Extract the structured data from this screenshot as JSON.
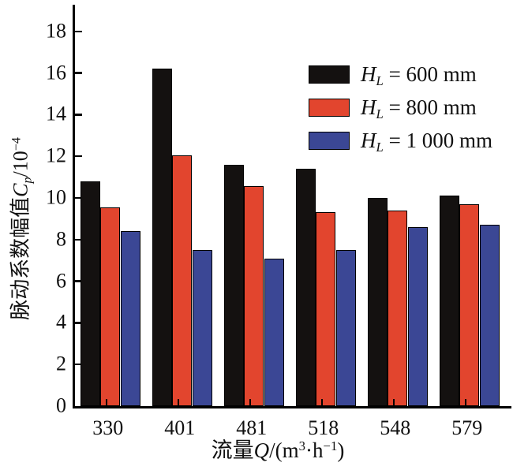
{
  "chart_data": {
    "type": "bar",
    "title": "",
    "categories": [
      "330",
      "401",
      "481",
      "518",
      "548",
      "579"
    ],
    "series": [
      {
        "name": "H_L = 600 mm",
        "color": "#141110",
        "values": [
          10.8,
          16.2,
          11.6,
          11.4,
          10.0,
          10.1
        ]
      },
      {
        "name": "H_L = 800 mm",
        "color": "#e2452e",
        "values": [
          9.55,
          12.05,
          10.55,
          9.3,
          9.4,
          9.7
        ]
      },
      {
        "name": "H_L = 1 000 mm",
        "color": "#3b4795",
        "values": [
          8.4,
          7.5,
          7.1,
          7.5,
          8.6,
          8.7
        ]
      }
    ],
    "xlabel": "流量Q/(m³·h⁻¹)",
    "ylabel": "脉动系数幅值Cp/10⁻⁴",
    "ylim": [
      0,
      19.3
    ],
    "yticks": [
      0,
      2,
      4,
      6,
      8,
      10,
      12,
      14,
      16,
      18
    ],
    "grid": false,
    "legend_position": "upper right",
    "bar_outline_color": "#000000",
    "axis_color": "#000000"
  },
  "legend": {
    "items": [
      {
        "symbol": "H",
        "subscript": "L",
        "rest": " = 600 mm"
      },
      {
        "symbol": "H",
        "subscript": "L",
        "rest": " = 800 mm"
      },
      {
        "symbol": "H",
        "subscript": "L",
        "rest": " = 1 000 mm"
      }
    ]
  },
  "y_axis": {
    "prefix": "脉动系数幅值",
    "symbol": "C",
    "subscript": "p",
    "unit": "/10",
    "exponent": "−4"
  },
  "x_axis": {
    "prefix": "流量",
    "symbol": "Q",
    "unit_open": "/(m",
    "exp1": "3",
    "unit_mid": "·h",
    "exp2": "−1",
    "unit_close": ")"
  }
}
